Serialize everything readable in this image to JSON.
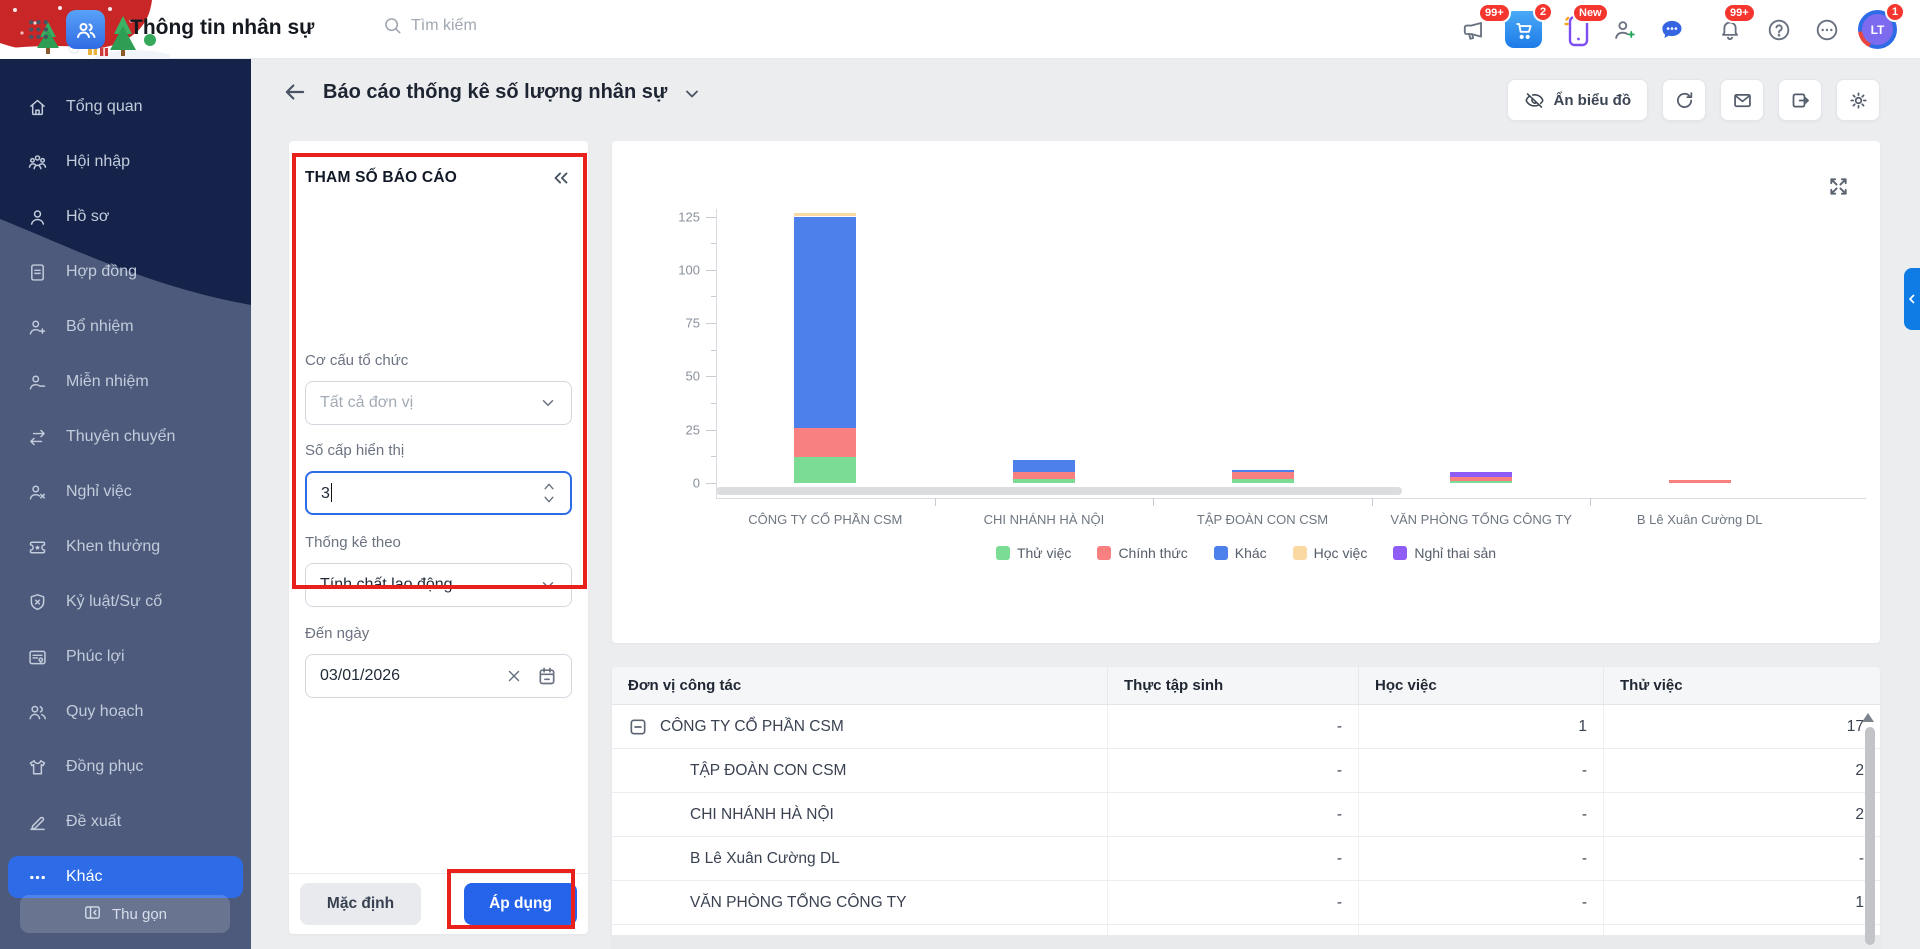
{
  "topbar": {
    "app_title": "Thông tin nhân sự",
    "search_placeholder": "Tìm kiếm",
    "badges": {
      "megaphone": "99+",
      "cart": "2",
      "phone": "New",
      "bell": "99+",
      "avatar": "1"
    },
    "avatar_text": "LT"
  },
  "sidebar": {
    "items": [
      {
        "id": "tong-quan",
        "label": "Tổng quan",
        "icon": "home",
        "active": false
      },
      {
        "id": "hoi-nhap",
        "label": "Hội nhập",
        "icon": "people3",
        "active": false
      },
      {
        "id": "ho-so",
        "label": "Hồ sơ",
        "icon": "person",
        "active": false
      },
      {
        "id": "hop-dong",
        "label": "Hợp đồng",
        "icon": "doc",
        "active": false
      },
      {
        "id": "bo-nhiem",
        "label": "Bổ nhiệm",
        "icon": "person-plus",
        "active": false
      },
      {
        "id": "mien-nhiem",
        "label": "Miễn nhiệm",
        "icon": "person-minus",
        "active": false
      },
      {
        "id": "thuyen-chuyen",
        "label": "Thuyên chuyển",
        "icon": "swap",
        "active": false
      },
      {
        "id": "nghi-viec",
        "label": "Nghỉ việc",
        "icon": "person-x",
        "active": false
      },
      {
        "id": "khen-thuong",
        "label": "Khen thưởng",
        "icon": "ticket",
        "active": false
      },
      {
        "id": "ky-luat-su-co",
        "label": "Kỷ luật/Sự cố",
        "icon": "shield-x",
        "active": false
      },
      {
        "id": "phuc-loi",
        "label": "Phúc lợi",
        "icon": "card",
        "active": false
      },
      {
        "id": "quy-hoach",
        "label": "Quy hoạch",
        "icon": "people2",
        "active": false
      },
      {
        "id": "dong-phuc",
        "label": "Đồng phục",
        "icon": "tshirt",
        "active": false
      },
      {
        "id": "de-xuat",
        "label": "Đề xuất",
        "icon": "edit",
        "active": false
      },
      {
        "id": "khac",
        "label": "Khác",
        "icon": "dots",
        "active": true
      }
    ],
    "collapse_label": "Thu gọn"
  },
  "header": {
    "title": "Báo cáo thống kê số lượng nhân sự",
    "hide_chart_label": "Ẩn biểu đồ"
  },
  "params": {
    "title": "THAM SỐ BÁO CÁO",
    "fields": [
      {
        "label": "Cơ cấu tổ chức",
        "value": "Tất cả đơn vị"
      },
      {
        "label": "Số cấp hiển thị",
        "value": "3"
      },
      {
        "label": "Thống kê theo",
        "value": "Tính chất lao động"
      },
      {
        "label": "Đến ngày",
        "value": "03/01/2026"
      }
    ],
    "default_label": "Mặc định",
    "apply_label": "Áp dụng"
  },
  "chart_data": {
    "type": "bar",
    "stacked": true,
    "categories": [
      "CÔNG TY CỔ PHẦN CSM",
      "CHI NHÁNH HÀ NỘI",
      "TẬP ĐOÀN CON CSM",
      "VĂN PHÒNG TỔNG CÔNG TY",
      "B Lê Xuân Cường DL"
    ],
    "series": [
      {
        "name": "Thử việc",
        "color": "#7BDC95",
        "values": [
          12,
          2,
          2,
          1,
          0
        ]
      },
      {
        "name": "Chính thức",
        "color": "#F88080",
        "values": [
          14,
          3,
          3,
          2,
          1.5
        ]
      },
      {
        "name": "Khác",
        "color": "#4D80EA",
        "values": [
          99,
          6,
          1,
          0,
          0
        ]
      },
      {
        "name": "Học việc",
        "color": "#FBD9A3",
        "values": [
          1.5,
          0,
          0,
          0,
          0
        ]
      },
      {
        "name": "Nghỉ thai sản",
        "color": "#8F5CF7",
        "values": [
          0,
          0,
          0,
          2,
          0
        ]
      }
    ],
    "yticks": [
      0,
      25,
      50,
      75,
      100,
      125
    ],
    "ylim": [
      0,
      130
    ],
    "grid": false,
    "legend_position": "bottom"
  },
  "table": {
    "columns": [
      "Đơn vị công tác",
      "Thực tập sinh",
      "Học việc",
      "Thử việc"
    ],
    "rows": [
      {
        "name": "CÔNG TY CỔ PHẦN CSM",
        "level": 0,
        "expandable": true,
        "values": [
          "-",
          "1",
          "17"
        ]
      },
      {
        "name": "TẬP ĐOÀN CON CSM",
        "level": 1,
        "expandable": false,
        "values": [
          "-",
          "-",
          "2"
        ]
      },
      {
        "name": "CHI NHÁNH HÀ NỘI",
        "level": 1,
        "expandable": false,
        "values": [
          "-",
          "-",
          "2"
        ]
      },
      {
        "name": "B Lê Xuân Cường DL",
        "level": 1,
        "expandable": false,
        "values": [
          "-",
          "-",
          "-"
        ]
      },
      {
        "name": "VĂN PHÒNG TỔNG CÔNG TY",
        "level": 1,
        "expandable": false,
        "values": [
          "-",
          "-",
          "1"
        ]
      }
    ]
  },
  "colors": {
    "accent": "#2563EB",
    "annotation": "#E8211D",
    "sidebar_bg": "#15234A",
    "badge": "#F5362F"
  }
}
